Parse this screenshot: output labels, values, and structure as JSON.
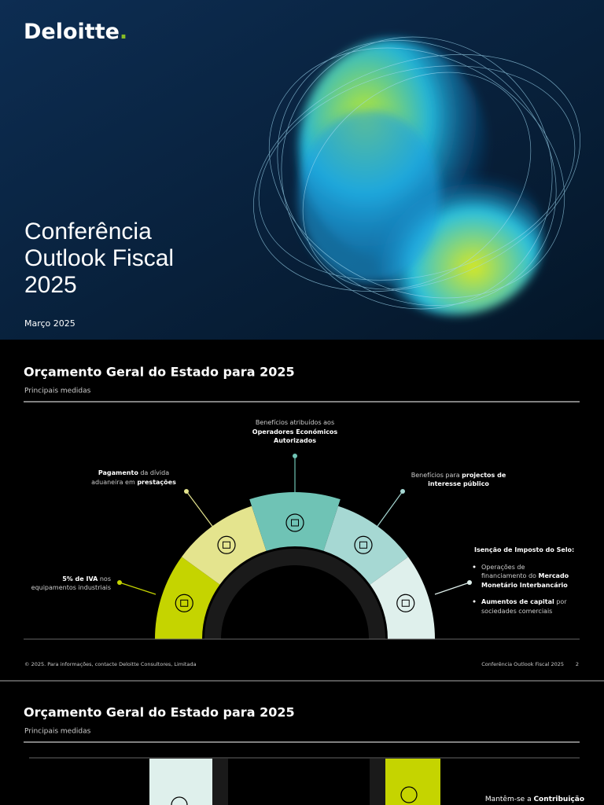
{
  "slide1": {
    "logo": "Deloitte",
    "logo_dot": ".",
    "title": [
      "Conferência",
      "Outlook Fiscal",
      "2025"
    ],
    "date": "Março 2025"
  },
  "slide2": {
    "title": "Orçamento Geral do Estado para 2025",
    "subtitle": "Principais medidas",
    "measures": [
      {
        "lines": [
          [
            {
              "t": "5% de IVA",
              "b": true
            },
            {
              "t": " nos"
            }
          ],
          [
            {
              "t": "equipamentos industriais"
            }
          ]
        ]
      },
      {
        "lines": [
          [
            {
              "t": "Pagamento",
              "b": true
            },
            {
              "t": " da dívida"
            }
          ],
          [
            {
              "t": "aduaneira em "
            },
            {
              "t": "prestações",
              "b": true
            }
          ]
        ]
      },
      {
        "lines": [
          [
            {
              "t": "Benefícios atribuídos aos"
            }
          ],
          [
            {
              "t": "Operadores Económicos",
              "b": true
            }
          ],
          [
            {
              "t": "Autorizados",
              "b": true
            }
          ]
        ]
      },
      {
        "lines": [
          [
            {
              "t": "Benefícios para "
            },
            {
              "t": "projectos de",
              "b": true
            }
          ],
          [
            {
              "t": "interesse público",
              "b": true
            }
          ]
        ]
      },
      {
        "lines": [
          [
            {
              "t": "Isenção de Imposto do Selo:",
              "b": true
            }
          ],
          [
            {
              "t": "Operações de"
            }
          ],
          [
            {
              "t": "financiamento do "
            },
            {
              "t": "Mercado",
              "b": true
            }
          ],
          [
            {
              "t": "Monetário Interbancário",
              "b": true
            }
          ],
          [
            {
              "t": "Aumentos de capital",
              "b": true
            },
            {
              "t": " por"
            }
          ],
          [
            {
              "t": "sociedades comerciais"
            }
          ]
        ]
      }
    ],
    "footer": {
      "copyright": "© 2025. Para informações, contacte Deloitte Consultores, Limitada",
      "event": "Conferência Outlook Fiscal 2025",
      "page": "2"
    }
  },
  "slide3": {
    "title": "Orçamento Geral do Estado para 2025",
    "subtitle": "Principais medidas",
    "partial_text": [
      {
        "t": "Mantêm-se a "
      },
      {
        "t": "Contribuição",
        "b": true
      }
    ]
  }
}
